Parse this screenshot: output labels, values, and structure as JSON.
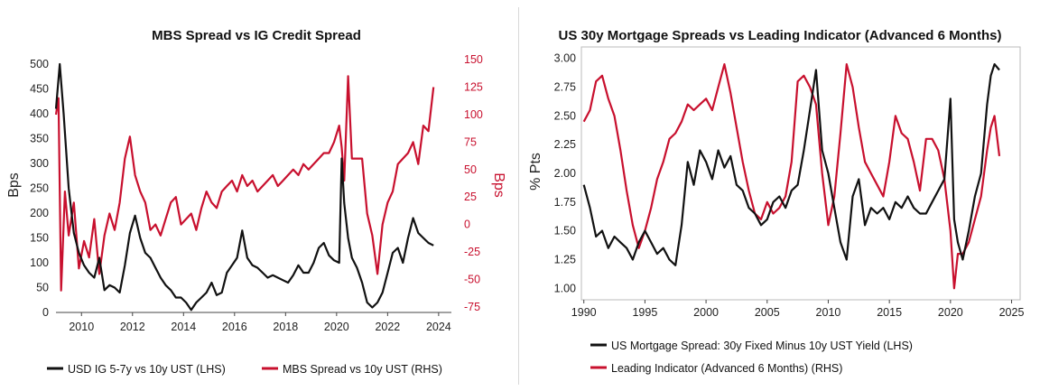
{
  "colors": {
    "black_series": "#111111",
    "red_series": "#c8102e",
    "frame": "#bbbbbb",
    "divider": "#d9d9d9"
  },
  "chart_data": [
    {
      "type": "line",
      "title": "MBS Spread vs IG Credit Spread",
      "xlabel": "",
      "ylabel_left": "Bps",
      "ylabel_right": "Bps",
      "xlim": [
        2009.0,
        2024.5
      ],
      "ylim_left": [
        0,
        520
      ],
      "ylim_right": [
        -80,
        155
      ],
      "x_ticks": [
        2010,
        2012,
        2014,
        2016,
        2018,
        2020,
        2022,
        2024
      ],
      "y_ticks_left": [
        0,
        50,
        100,
        150,
        200,
        250,
        300,
        350,
        400,
        450,
        500
      ],
      "y_ticks_right": [
        -75,
        -50,
        -25,
        0,
        25,
        50,
        75,
        100,
        125,
        150
      ],
      "legend_position": "bottom",
      "series": [
        {
          "name": "USD IG 5-7y vs 10y UST (LHS)",
          "axis": "left",
          "color": "#111111",
          "x": [
            2009.0,
            2009.15,
            2009.3,
            2009.5,
            2009.7,
            2009.9,
            2010.1,
            2010.3,
            2010.5,
            2010.7,
            2010.9,
            2011.1,
            2011.3,
            2011.5,
            2011.7,
            2011.9,
            2012.1,
            2012.3,
            2012.5,
            2012.7,
            2012.9,
            2013.1,
            2013.3,
            2013.5,
            2013.7,
            2013.9,
            2014.1,
            2014.3,
            2014.5,
            2014.7,
            2014.9,
            2015.1,
            2015.3,
            2015.5,
            2015.7,
            2015.9,
            2016.1,
            2016.3,
            2016.5,
            2016.7,
            2016.9,
            2017.1,
            2017.3,
            2017.5,
            2017.7,
            2017.9,
            2018.1,
            2018.3,
            2018.5,
            2018.7,
            2018.9,
            2019.1,
            2019.3,
            2019.5,
            2019.7,
            2019.9,
            2020.1,
            2020.2,
            2020.3,
            2020.45,
            2020.6,
            2020.8,
            2021.0,
            2021.2,
            2021.4,
            2021.6,
            2021.8,
            2022.0,
            2022.2,
            2022.4,
            2022.6,
            2022.8,
            2023.0,
            2023.2,
            2023.4,
            2023.6,
            2023.8
          ],
          "values": [
            410,
            500,
            400,
            250,
            160,
            120,
            95,
            80,
            70,
            110,
            45,
            55,
            50,
            40,
            95,
            160,
            195,
            150,
            120,
            110,
            90,
            70,
            55,
            45,
            30,
            30,
            20,
            5,
            20,
            30,
            40,
            60,
            35,
            40,
            80,
            95,
            110,
            165,
            110,
            95,
            90,
            80,
            70,
            75,
            70,
            65,
            60,
            75,
            95,
            80,
            80,
            100,
            130,
            140,
            115,
            105,
            100,
            310,
            220,
            150,
            110,
            90,
            60,
            20,
            10,
            20,
            40,
            80,
            120,
            130,
            100,
            150,
            190,
            160,
            150,
            140,
            135
          ]
        },
        {
          "name": "MBS Spread vs 10y UST (RHS)",
          "axis": "right",
          "color": "#c8102e",
          "x": [
            2009.0,
            2009.1,
            2009.2,
            2009.35,
            2009.5,
            2009.7,
            2009.9,
            2010.1,
            2010.3,
            2010.5,
            2010.7,
            2010.9,
            2011.1,
            2011.3,
            2011.5,
            2011.7,
            2011.9,
            2012.1,
            2012.3,
            2012.5,
            2012.7,
            2012.9,
            2013.1,
            2013.3,
            2013.5,
            2013.7,
            2013.9,
            2014.1,
            2014.3,
            2014.5,
            2014.7,
            2014.9,
            2015.1,
            2015.3,
            2015.5,
            2015.7,
            2015.9,
            2016.1,
            2016.3,
            2016.5,
            2016.7,
            2016.9,
            2017.1,
            2017.3,
            2017.5,
            2017.7,
            2017.9,
            2018.1,
            2018.3,
            2018.5,
            2018.7,
            2018.9,
            2019.1,
            2019.3,
            2019.5,
            2019.7,
            2019.9,
            2020.1,
            2020.2,
            2020.3,
            2020.45,
            2020.6,
            2020.8,
            2021.0,
            2021.2,
            2021.4,
            2021.6,
            2021.8,
            2022.0,
            2022.2,
            2022.4,
            2022.6,
            2022.8,
            2023.0,
            2023.2,
            2023.4,
            2023.6,
            2023.8
          ],
          "values": [
            100,
            115,
            -60,
            30,
            -10,
            20,
            -40,
            -15,
            -30,
            5,
            -45,
            -10,
            10,
            -5,
            20,
            60,
            80,
            45,
            30,
            20,
            -5,
            0,
            -10,
            5,
            20,
            25,
            0,
            5,
            10,
            -5,
            15,
            30,
            20,
            15,
            30,
            35,
            40,
            30,
            45,
            35,
            40,
            30,
            35,
            40,
            45,
            35,
            40,
            45,
            50,
            45,
            55,
            50,
            55,
            60,
            65,
            65,
            75,
            90,
            70,
            40,
            135,
            60,
            60,
            60,
            10,
            -10,
            -45,
            0,
            20,
            30,
            55,
            60,
            65,
            75,
            55,
            90,
            85,
            125
          ]
        }
      ]
    },
    {
      "type": "line",
      "title": "US 30y Mortgage Spreads vs Leading Indicator (Advanced 6 Months)",
      "xlabel": "",
      "ylabel": "% Pts",
      "xlim": [
        1989.8,
        2025.7
      ],
      "ylim": [
        0.9,
        3.1
      ],
      "x_ticks": [
        1990,
        1995,
        2000,
        2005,
        2010,
        2015,
        2020,
        2025
      ],
      "y_ticks": [
        "1.00",
        "1.25",
        "1.50",
        "1.75",
        "2.00",
        "2.25",
        "2.50",
        "2.75",
        "3.00"
      ],
      "legend_position": "bottom",
      "series": [
        {
          "name": "US Mortgage Spread: 30y Fixed Minus 10y UST Yield (LHS)",
          "color": "#111111",
          "x": [
            1990.0,
            1990.5,
            1991.0,
            1991.5,
            1992.0,
            1992.5,
            1993.0,
            1993.5,
            1994.0,
            1994.5,
            1995.0,
            1995.5,
            1996.0,
            1996.5,
            1997.0,
            1997.5,
            1998.0,
            1998.5,
            1999.0,
            1999.5,
            2000.0,
            2000.5,
            2001.0,
            2001.5,
            2002.0,
            2002.5,
            2003.0,
            2003.5,
            2004.0,
            2004.5,
            2005.0,
            2005.5,
            2006.0,
            2006.5,
            2007.0,
            2007.5,
            2008.0,
            2008.5,
            2009.0,
            2009.5,
            2010.0,
            2010.5,
            2011.0,
            2011.5,
            2012.0,
            2012.5,
            2013.0,
            2013.5,
            2014.0,
            2014.5,
            2015.0,
            2015.5,
            2016.0,
            2016.5,
            2017.0,
            2017.5,
            2018.0,
            2018.5,
            2019.0,
            2019.5,
            2020.0,
            2020.3,
            2020.6,
            2021.0,
            2021.5,
            2022.0,
            2022.5,
            2023.0,
            2023.3,
            2023.6,
            2024.0
          ],
          "values": [
            1.9,
            1.7,
            1.45,
            1.5,
            1.35,
            1.45,
            1.4,
            1.35,
            1.25,
            1.4,
            1.5,
            1.4,
            1.3,
            1.35,
            1.25,
            1.2,
            1.55,
            2.1,
            1.9,
            2.2,
            2.1,
            1.95,
            2.2,
            2.05,
            2.15,
            1.9,
            1.85,
            1.7,
            1.65,
            1.55,
            1.6,
            1.75,
            1.8,
            1.7,
            1.85,
            1.9,
            2.2,
            2.55,
            2.9,
            2.2,
            2.0,
            1.7,
            1.4,
            1.25,
            1.8,
            1.95,
            1.55,
            1.7,
            1.65,
            1.7,
            1.6,
            1.75,
            1.7,
            1.8,
            1.7,
            1.65,
            1.65,
            1.75,
            1.85,
            1.95,
            2.65,
            1.6,
            1.4,
            1.25,
            1.5,
            1.8,
            2.0,
            2.6,
            2.85,
            2.95,
            2.9
          ]
        },
        {
          "name": "Leading Indicator (Advanced 6 Months) (RHS)",
          "color": "#c8102e",
          "x": [
            1990.0,
            1990.5,
            1991.0,
            1991.5,
            1992.0,
            1992.5,
            1993.0,
            1993.5,
            1994.0,
            1994.5,
            1995.0,
            1995.5,
            1996.0,
            1996.5,
            1997.0,
            1997.5,
            1998.0,
            1998.5,
            1999.0,
            1999.5,
            2000.0,
            2000.5,
            2001.0,
            2001.5,
            2002.0,
            2002.5,
            2003.0,
            2003.5,
            2004.0,
            2004.5,
            2005.0,
            2005.5,
            2006.0,
            2006.5,
            2007.0,
            2007.5,
            2008.0,
            2008.5,
            2009.0,
            2009.5,
            2010.0,
            2010.5,
            2011.0,
            2011.5,
            2012.0,
            2012.5,
            2013.0,
            2013.5,
            2014.0,
            2014.5,
            2015.0,
            2015.5,
            2016.0,
            2016.5,
            2017.0,
            2017.5,
            2018.0,
            2018.5,
            2019.0,
            2019.5,
            2020.0,
            2020.3,
            2020.6,
            2021.0,
            2021.5,
            2022.0,
            2022.5,
            2023.0,
            2023.3,
            2023.6,
            2024.0
          ],
          "values": [
            2.45,
            2.55,
            2.8,
            2.85,
            2.65,
            2.5,
            2.2,
            1.85,
            1.55,
            1.35,
            1.5,
            1.7,
            1.95,
            2.1,
            2.3,
            2.35,
            2.45,
            2.6,
            2.55,
            2.6,
            2.65,
            2.55,
            2.75,
            2.95,
            2.7,
            2.4,
            2.1,
            1.85,
            1.65,
            1.6,
            1.75,
            1.65,
            1.7,
            1.8,
            2.1,
            2.8,
            2.85,
            2.75,
            2.6,
            2.0,
            1.55,
            1.8,
            2.35,
            2.95,
            2.75,
            2.4,
            2.1,
            2.0,
            1.9,
            1.8,
            2.1,
            2.5,
            2.35,
            2.3,
            2.1,
            1.85,
            2.3,
            2.3,
            2.2,
            1.95,
            1.5,
            1.0,
            1.3,
            1.3,
            1.4,
            1.6,
            1.8,
            2.2,
            2.4,
            2.5,
            2.15
          ]
        }
      ]
    }
  ]
}
